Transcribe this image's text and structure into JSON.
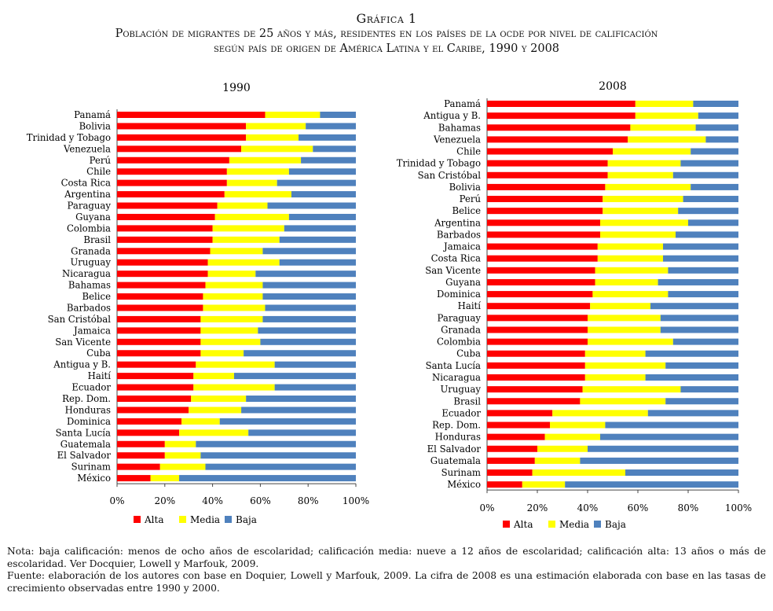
{
  "title": {
    "line1": "Gráfica 1",
    "line2": "Población de migrantes de 25 años y más, residentes en los países de la ocde por nivel de calificación",
    "line3": "según país de origen de América Latina y el Caribe, 1990 y 2008"
  },
  "notes": {
    "nota": "Nota: baja calificación: menos de ocho años de escolaridad; calificación media: nueve a 12 años de escolaridad; calificación alta: 13 años o más de escolaridad. Ver Docquier, Lowell y Marfouk, 2009.",
    "fuente": "Fuente: elaboración de los autores con base en Doquier, Lowell y Marfouk, 2009. La cifra de 2008 es una estimación elaborada con base en las tasas de crecimiento observadas entre 1990 y 2000."
  },
  "colors": {
    "Alta": "#ff0000",
    "Media": "#ffff00",
    "Baja": "#4f81bd"
  },
  "chart_data": [
    {
      "type": "bar",
      "orientation": "horizontal",
      "stacked": true,
      "title": "1990",
      "xlabel": "",
      "ylabel": "",
      "xlim": [
        0,
        100
      ],
      "x_ticks": [
        "0%",
        "20%",
        "40%",
        "60%",
        "80%",
        "100%"
      ],
      "legend": [
        "Alta",
        "Media",
        "Baja"
      ],
      "legend_position": "bottom-left",
      "categories": [
        "Panamá",
        "Bolivia",
        "Trinidad y Tobago",
        "Venezuela",
        "Perú",
        "Chile",
        "Costa Rica",
        "Argentina",
        "Paraguay",
        "Guyana",
        "Colombia",
        "Brasil",
        "Granada",
        "Uruguay",
        "Nicaragua",
        "Bahamas",
        "Belice",
        "Barbados",
        "San Cristóbal",
        "Jamaica",
        "San Vicente",
        "Cuba",
        "Antigua y B.",
        "Haití",
        "Ecuador",
        "Rep. Dom.",
        "Honduras",
        "Dominica",
        "Santa Lucía",
        "Guatemala",
        "El Salvador",
        "Surinam",
        "México"
      ],
      "series": [
        {
          "name": "Alta",
          "values": [
            62,
            54,
            54,
            52,
            47,
            46,
            46,
            45,
            42,
            41,
            40,
            40,
            39,
            38,
            38,
            37,
            36,
            36,
            35,
            35,
            35,
            35,
            33,
            32,
            32,
            31,
            30,
            27,
            26,
            20,
            20,
            18,
            14
          ]
        },
        {
          "name": "Media",
          "values": [
            23,
            25,
            22,
            30,
            30,
            26,
            21,
            28,
            21,
            31,
            30,
            28,
            22,
            30,
            20,
            24,
            25,
            26,
            26,
            24,
            25,
            18,
            33,
            17,
            34,
            23,
            22,
            16,
            29,
            13,
            15,
            19,
            12
          ]
        },
        {
          "name": "Baja",
          "values": [
            15,
            21,
            24,
            18,
            23,
            28,
            33,
            27,
            37,
            28,
            30,
            32,
            39,
            32,
            42,
            39,
            39,
            38,
            39,
            41,
            40,
            47,
            34,
            51,
            34,
            46,
            48,
            57,
            45,
            67,
            65,
            63,
            74
          ]
        }
      ]
    },
    {
      "type": "bar",
      "orientation": "horizontal",
      "stacked": true,
      "title": "2008",
      "xlabel": "",
      "ylabel": "",
      "xlim": [
        0,
        100
      ],
      "x_ticks": [
        "0%",
        "20%",
        "40%",
        "60%",
        "80%",
        "100%"
      ],
      "legend": [
        "Alta",
        "Media",
        "Baja"
      ],
      "legend_position": "bottom-left",
      "categories": [
        "Panamá",
        "Antigua y B.",
        "Bahamas",
        "Venezuela",
        "Chile",
        "Trinidad y Tobago",
        "San Cristóbal",
        "Bolivia",
        "Perú",
        "Belice",
        "Argentina",
        "Barbados",
        "Jamaica",
        "Costa Rica",
        "San Vicente",
        "Guyana",
        "Dominica",
        "Haití",
        "Paraguay",
        "Granada",
        "Colombia",
        "Cuba",
        "Santa Lucía",
        "Nicaragua",
        "Uruguay",
        "Brasil",
        "Ecuador",
        "Rep. Dom.",
        "Honduras",
        "El Salvador",
        "Guatemala",
        "Surinam",
        "México"
      ],
      "series": [
        {
          "name": "Alta",
          "values": [
            59,
            59,
            57,
            56,
            50,
            48,
            48,
            47,
            46,
            46,
            45,
            45,
            44,
            44,
            43,
            43,
            42,
            41,
            40,
            40,
            40,
            39,
            39,
            39,
            38,
            37,
            26,
            25,
            23,
            20,
            19,
            18,
            14
          ]
        },
        {
          "name": "Media",
          "values": [
            23,
            25,
            26,
            31,
            31,
            29,
            26,
            34,
            32,
            30,
            35,
            30,
            26,
            26,
            29,
            25,
            30,
            24,
            29,
            29,
            34,
            24,
            32,
            24,
            39,
            34,
            38,
            22,
            22,
            20,
            18,
            37,
            17
          ]
        },
        {
          "name": "Baja",
          "values": [
            18,
            16,
            17,
            13,
            19,
            23,
            26,
            19,
            22,
            24,
            20,
            25,
            30,
            30,
            28,
            32,
            28,
            35,
            31,
            31,
            26,
            37,
            29,
            37,
            23,
            29,
            36,
            53,
            55,
            60,
            63,
            45,
            69
          ]
        }
      ]
    }
  ]
}
